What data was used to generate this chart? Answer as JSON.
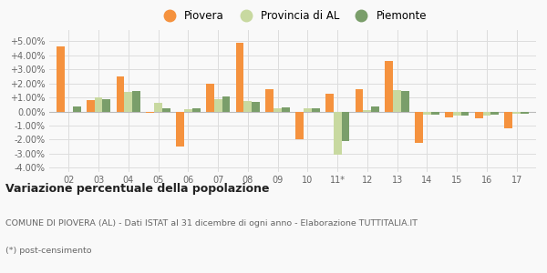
{
  "years": [
    "02",
    "03",
    "04",
    "05",
    "06",
    "07",
    "08",
    "09",
    "10",
    "11*",
    "12",
    "13",
    "14",
    "15",
    "16",
    "17"
  ],
  "piovera": [
    4.65,
    0.8,
    2.5,
    -0.1,
    -2.5,
    1.95,
    4.9,
    1.6,
    -2.0,
    1.3,
    1.6,
    3.6,
    -2.2,
    -0.4,
    -0.5,
    -1.2
  ],
  "provincia_al": [
    -0.05,
    1.0,
    1.4,
    0.6,
    0.15,
    0.85,
    0.75,
    0.25,
    0.2,
    -3.1,
    0.1,
    1.55,
    -0.2,
    -0.3,
    -0.3,
    -0.15
  ],
  "piemonte": [
    0.35,
    0.9,
    1.45,
    0.25,
    0.25,
    1.1,
    0.7,
    0.3,
    0.2,
    -2.1,
    0.35,
    1.45,
    -0.2,
    -0.3,
    -0.25,
    -0.15
  ],
  "piovera_color": "#f5923e",
  "provincia_color": "#c8d9a0",
  "piemonte_color": "#7a9e6a",
  "title": "Variazione percentuale della popolazione",
  "subtitle1": "COMUNE DI PIOVERA (AL) - Dati ISTAT al 31 dicembre di ogni anno - Elaborazione TUTTITALIA.IT",
  "subtitle2": "(*) post-censimento",
  "legend_labels": [
    "Piovera",
    "Provincia di AL",
    "Piemonte"
  ],
  "yticks": [
    -4.0,
    -3.0,
    -2.0,
    -1.0,
    0.0,
    1.0,
    2.0,
    3.0,
    4.0,
    5.0
  ],
  "ytick_labels": [
    "-4.00%",
    "-3.00%",
    "-2.00%",
    "-1.00%",
    "0.00%",
    "+1.00%",
    "+2.00%",
    "+3.00%",
    "+4.00%",
    "+5.00%"
  ],
  "ylim": [
    -4.3,
    5.8
  ],
  "bar_width": 0.27,
  "bg_color": "#f9f9f9",
  "grid_color": "#dddddd"
}
